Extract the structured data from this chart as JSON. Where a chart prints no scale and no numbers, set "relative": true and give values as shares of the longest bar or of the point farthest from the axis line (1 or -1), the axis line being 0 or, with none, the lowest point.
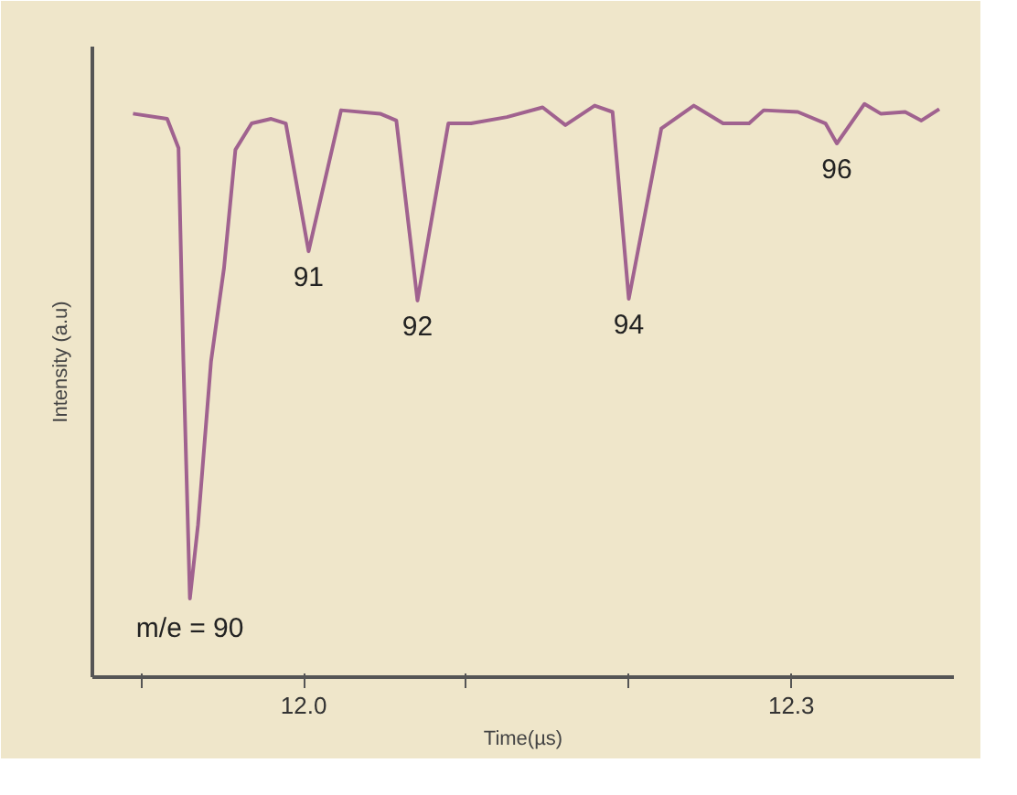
{
  "chart_data": {
    "type": "line",
    "relative": true,
    "xlabel": "Time(µs)",
    "ylabel": "Intensity (a.u)",
    "xlim": [
      11.87,
      12.4
    ],
    "xticks": [
      {
        "value": 11.9,
        "label": null
      },
      {
        "value": 12.0,
        "label": "12.0"
      },
      {
        "value": 12.1,
        "label": null
      },
      {
        "value": 12.2,
        "label": null
      },
      12.3
    ],
    "x": [
      11.895,
      11.916,
      11.923,
      11.926,
      11.93,
      11.935,
      11.943,
      11.951,
      11.958,
      11.968,
      11.98,
      11.989,
      12.003,
      12.023,
      12.047,
      12.057,
      12.07,
      12.089,
      12.103,
      12.125,
      12.147,
      12.161,
      12.179,
      12.19,
      12.2,
      12.22,
      12.24,
      12.258,
      12.274,
      12.283,
      12.304,
      12.321,
      12.328,
      12.345,
      12.355,
      12.37,
      12.38,
      12.391
    ],
    "series": [
      {
        "color": "#a0628f",
        "values": [
          0.983,
          0.974,
          0.923,
          0.551,
          0.137,
          0.266,
          0.551,
          0.714,
          0.92,
          0.966,
          0.974,
          0.966,
          0.743,
          0.989,
          0.983,
          0.971,
          0.657,
          0.966,
          0.966,
          0.977,
          0.994,
          0.963,
          0.997,
          0.986,
          0.66,
          0.957,
          0.997,
          0.966,
          0.966,
          0.989,
          0.986,
          0.966,
          0.931,
          1.0,
          0.983,
          0.986,
          0.971,
          0.991
        ]
      }
    ],
    "annotations": [
      {
        "text": "m/e = 90",
        "x": 11.93,
        "y": 0.137
      },
      {
        "text": "91",
        "x": 12.003,
        "y": 0.743
      },
      {
        "text": "92",
        "x": 12.07,
        "y": 0.657
      },
      {
        "text": "94",
        "x": 12.2,
        "y": 0.66
      },
      {
        "text": "96",
        "x": 12.328,
        "y": 0.931
      }
    ],
    "grid": false,
    "marker": "none",
    "line_style": "solid"
  }
}
